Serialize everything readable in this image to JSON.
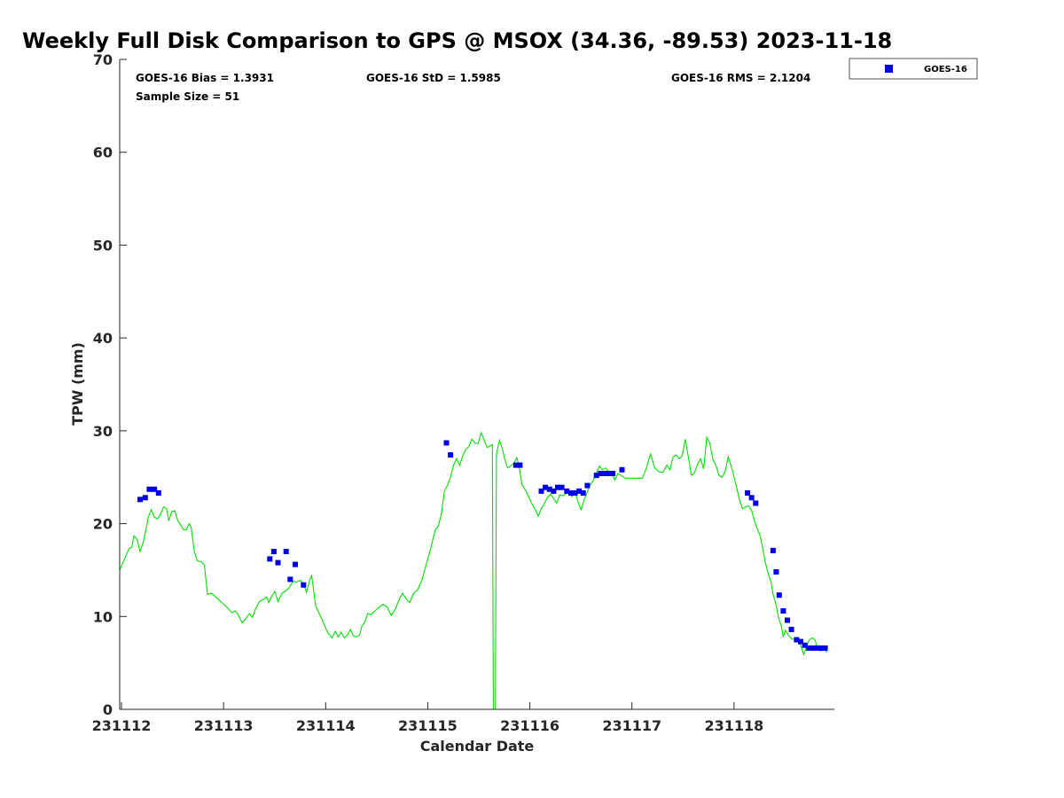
{
  "title": "Weekly Full Disk Comparison to GPS @ MSOX (34.36, -89.53) 2023-11-18",
  "stats": {
    "bias": "GOES-16 Bias = 1.3931",
    "std": "GOES-16 StD = 1.5985",
    "rms": "GOES-16 RMS = 2.1204",
    "sample": "Sample Size = 51"
  },
  "colors": {
    "gps_line": "#00e000",
    "goes_marker": "#0000e6",
    "axis": "#262626"
  },
  "chart_data": {
    "type": "scatter",
    "title": "Weekly Full Disk Comparison to GPS @ MSOX (34.36, -89.53) 2023-11-18",
    "xlabel": "Calendar Date",
    "ylabel": "TPW (mm)",
    "xlim": [
      "231112",
      "231119"
    ],
    "ylim": [
      0,
      70
    ],
    "x_ticks": [
      "231112",
      "231113",
      "231114",
      "231115",
      "231116",
      "231117",
      "231118"
    ],
    "y_ticks": [
      0,
      10,
      20,
      30,
      40,
      50,
      60,
      70
    ],
    "grid": false,
    "legend": {
      "placement": "top-right",
      "entries": [
        "GOES-16"
      ]
    },
    "series": [
      {
        "kind": "line",
        "color": "#00e000",
        "points": [
          [
            0.0,
            15.0
          ],
          [
            0.03,
            15.8
          ],
          [
            0.06,
            16.5
          ],
          [
            0.09,
            17.3
          ],
          [
            0.12,
            17.5
          ],
          [
            0.14,
            18.7
          ],
          [
            0.17,
            18.3
          ],
          [
            0.2,
            17.0
          ],
          [
            0.23,
            18.0
          ],
          [
            0.26,
            19.5
          ],
          [
            0.28,
            20.7
          ],
          [
            0.31,
            21.5
          ],
          [
            0.34,
            20.7
          ],
          [
            0.37,
            20.5
          ],
          [
            0.4,
            21.0
          ],
          [
            0.43,
            21.8
          ],
          [
            0.46,
            21.6
          ],
          [
            0.48,
            20.3
          ],
          [
            0.51,
            21.3
          ],
          [
            0.54,
            21.4
          ],
          [
            0.57,
            20.3
          ],
          [
            0.6,
            19.8
          ],
          [
            0.62,
            19.4
          ],
          [
            0.65,
            19.3
          ],
          [
            0.68,
            20.0
          ],
          [
            0.7,
            19.6
          ],
          [
            0.73,
            17.0
          ],
          [
            0.76,
            16.0
          ],
          [
            0.8,
            15.9
          ],
          [
            0.83,
            15.5
          ],
          [
            0.86,
            12.4
          ],
          [
            0.9,
            12.5
          ],
          [
            0.95,
            12.0
          ],
          [
            1.0,
            11.5
          ],
          [
            1.05,
            11.0
          ],
          [
            1.1,
            10.4
          ],
          [
            1.13,
            10.6
          ],
          [
            1.16,
            10.2
          ],
          [
            1.2,
            9.3
          ],
          [
            1.23,
            9.7
          ],
          [
            1.27,
            10.3
          ],
          [
            1.3,
            9.9
          ],
          [
            1.33,
            10.8
          ],
          [
            1.37,
            11.6
          ],
          [
            1.4,
            11.8
          ],
          [
            1.44,
            12.1
          ],
          [
            1.46,
            11.5
          ],
          [
            1.49,
            12.2
          ],
          [
            1.52,
            12.7
          ],
          [
            1.55,
            11.6
          ],
          [
            1.59,
            12.5
          ],
          [
            1.62,
            12.7
          ],
          [
            1.66,
            13.1
          ],
          [
            1.7,
            13.8
          ],
          [
            1.73,
            13.7
          ],
          [
            1.77,
            13.9
          ],
          [
            1.8,
            13.5
          ],
          [
            1.83,
            12.6
          ],
          [
            1.86,
            13.9
          ],
          [
            1.88,
            14.4
          ],
          [
            1.92,
            11.1
          ],
          [
            1.96,
            10.2
          ],
          [
            2.0,
            9.2
          ],
          [
            2.04,
            8.2
          ],
          [
            2.08,
            7.7
          ],
          [
            2.11,
            8.4
          ],
          [
            2.14,
            7.8
          ],
          [
            2.17,
            8.3
          ],
          [
            2.2,
            7.7
          ],
          [
            2.23,
            8.0
          ],
          [
            2.26,
            8.6
          ],
          [
            2.29,
            7.9
          ],
          [
            2.32,
            7.8
          ],
          [
            2.35,
            8.0
          ],
          [
            2.37,
            8.9
          ],
          [
            2.4,
            9.4
          ],
          [
            2.43,
            10.3
          ],
          [
            2.46,
            10.2
          ],
          [
            2.5,
            10.6
          ],
          [
            2.55,
            11.1
          ],
          [
            2.58,
            11.3
          ],
          [
            2.62,
            11.0
          ],
          [
            2.66,
            10.1
          ],
          [
            2.7,
            10.8
          ],
          [
            2.74,
            11.9
          ],
          [
            2.77,
            12.5
          ],
          [
            2.8,
            12.0
          ],
          [
            2.84,
            11.5
          ],
          [
            2.88,
            12.5
          ],
          [
            2.92,
            12.9
          ],
          [
            2.96,
            13.9
          ],
          [
            3.0,
            15.5
          ],
          [
            3.05,
            17.5
          ],
          [
            3.09,
            19.3
          ],
          [
            3.12,
            19.7
          ],
          [
            3.15,
            21.0
          ],
          [
            3.18,
            23.5
          ],
          [
            3.21,
            24.1
          ],
          [
            3.24,
            25.0
          ],
          [
            3.27,
            26.3
          ],
          [
            3.3,
            27.0
          ],
          [
            3.33,
            26.3
          ],
          [
            3.36,
            27.3
          ],
          [
            3.39,
            28.0
          ],
          [
            3.42,
            28.3
          ],
          [
            3.45,
            29.1
          ],
          [
            3.48,
            28.7
          ],
          [
            3.51,
            28.6
          ],
          [
            3.54,
            29.8
          ],
          [
            3.57,
            29.0
          ],
          [
            3.6,
            28.2
          ],
          [
            3.63,
            28.4
          ],
          [
            3.65,
            28.5
          ],
          [
            3.66,
            0.0
          ],
          [
            3.68,
            0.0
          ],
          [
            3.69,
            27.5
          ],
          [
            3.72,
            29.0
          ],
          [
            3.75,
            28.0
          ],
          [
            3.77,
            27.0
          ],
          [
            3.8,
            26.0
          ],
          [
            3.83,
            26.2
          ],
          [
            3.86,
            26.5
          ],
          [
            3.89,
            27.1
          ],
          [
            3.91,
            26.3
          ],
          [
            3.94,
            24.2
          ],
          [
            3.98,
            23.5
          ],
          [
            4.03,
            22.3
          ],
          [
            4.08,
            21.3
          ],
          [
            4.1,
            20.8
          ],
          [
            4.13,
            21.6
          ],
          [
            4.16,
            22.2
          ],
          [
            4.19,
            22.8
          ],
          [
            4.22,
            23.2
          ],
          [
            4.25,
            22.7
          ],
          [
            4.28,
            22.2
          ],
          [
            4.31,
            23.1
          ],
          [
            4.34,
            23.0
          ],
          [
            4.37,
            23.2
          ],
          [
            4.4,
            23.5
          ],
          [
            4.43,
            22.9
          ],
          [
            4.46,
            23.5
          ],
          [
            4.49,
            22.3
          ],
          [
            4.52,
            21.5
          ],
          [
            4.55,
            22.6
          ],
          [
            4.58,
            23.4
          ],
          [
            4.61,
            24.2
          ],
          [
            4.64,
            24.7
          ],
          [
            4.67,
            25.5
          ],
          [
            4.7,
            26.2
          ],
          [
            4.73,
            25.8
          ],
          [
            4.76,
            26.0
          ],
          [
            4.79,
            25.6
          ],
          [
            4.82,
            25.4
          ],
          [
            4.85,
            24.7
          ],
          [
            4.88,
            25.4
          ],
          [
            4.91,
            25.2
          ],
          [
            4.95,
            24.9
          ],
          [
            5.0,
            24.9
          ],
          [
            5.05,
            24.9
          ],
          [
            5.09,
            24.9
          ],
          [
            5.12,
            24.9
          ],
          [
            5.16,
            26.0
          ],
          [
            5.2,
            27.5
          ],
          [
            5.24,
            26.0
          ],
          [
            5.28,
            25.6
          ],
          [
            5.32,
            25.5
          ],
          [
            5.36,
            26.3
          ],
          [
            5.39,
            25.8
          ],
          [
            5.42,
            27.2
          ],
          [
            5.45,
            27.4
          ],
          [
            5.48,
            27.0
          ],
          [
            5.51,
            27.3
          ],
          [
            5.54,
            29.1
          ],
          [
            5.57,
            27.2
          ],
          [
            5.6,
            25.2
          ],
          [
            5.63,
            25.5
          ],
          [
            5.66,
            26.4
          ],
          [
            5.69,
            27.0
          ],
          [
            5.72,
            25.9
          ],
          [
            5.75,
            29.3
          ],
          [
            5.78,
            28.7
          ],
          [
            5.81,
            26.9
          ],
          [
            5.84,
            26.3
          ],
          [
            5.87,
            25.2
          ],
          [
            5.9,
            25.0
          ],
          [
            5.93,
            25.6
          ],
          [
            5.96,
            27.2
          ],
          [
            6.0,
            25.8
          ],
          [
            6.04,
            24.0
          ],
          [
            6.07,
            22.6
          ],
          [
            6.1,
            21.6
          ],
          [
            6.13,
            21.8
          ],
          [
            6.16,
            21.9
          ],
          [
            6.19,
            21.4
          ],
          [
            6.22,
            20.2
          ],
          [
            6.25,
            19.3
          ],
          [
            6.27,
            18.8
          ],
          [
            6.3,
            17.3
          ],
          [
            6.32,
            16.0
          ],
          [
            6.35,
            14.7
          ],
          [
            6.38,
            13.7
          ],
          [
            6.4,
            12.4
          ],
          [
            6.43,
            11.2
          ],
          [
            6.45,
            10.0
          ],
          [
            6.48,
            9.0
          ],
          [
            6.5,
            7.8
          ],
          [
            6.52,
            8.5
          ],
          [
            6.55,
            8.0
          ],
          [
            6.58,
            7.6
          ],
          [
            6.61,
            7.5
          ],
          [
            6.64,
            7.4
          ],
          [
            6.67,
            6.9
          ],
          [
            6.7,
            5.9
          ],
          [
            6.72,
            6.5
          ],
          [
            6.75,
            7.4
          ],
          [
            6.78,
            7.7
          ],
          [
            6.81,
            7.5
          ],
          [
            6.84,
            6.4
          ],
          [
            6.87,
            6.3
          ],
          [
            6.9,
            6.5
          ],
          [
            6.93,
            6.1
          ]
        ]
      },
      {
        "name": "GOES-16",
        "kind": "scatter",
        "marker": "square",
        "color": "#0000e6",
        "points": [
          [
            0.2,
            22.6
          ],
          [
            0.25,
            22.8
          ],
          [
            0.29,
            23.7
          ],
          [
            0.34,
            23.7
          ],
          [
            0.38,
            23.3
          ],
          [
            1.47,
            16.2
          ],
          [
            1.51,
            17.0
          ],
          [
            1.55,
            15.8
          ],
          [
            1.63,
            17.0
          ],
          [
            1.67,
            14.0
          ],
          [
            1.72,
            15.6
          ],
          [
            1.8,
            13.4
          ],
          [
            3.2,
            28.7
          ],
          [
            3.24,
            27.4
          ],
          [
            3.88,
            26.3
          ],
          [
            3.92,
            26.3
          ],
          [
            4.13,
            23.5
          ],
          [
            4.17,
            23.9
          ],
          [
            4.21,
            23.7
          ],
          [
            4.25,
            23.5
          ],
          [
            4.29,
            23.9
          ],
          [
            4.33,
            23.9
          ],
          [
            4.38,
            23.5
          ],
          [
            4.42,
            23.3
          ],
          [
            4.46,
            23.3
          ],
          [
            4.5,
            23.5
          ],
          [
            4.54,
            23.3
          ],
          [
            4.58,
            24.1
          ],
          [
            4.67,
            25.2
          ],
          [
            4.71,
            25.4
          ],
          [
            4.75,
            25.4
          ],
          [
            4.79,
            25.4
          ],
          [
            4.83,
            25.4
          ],
          [
            4.92,
            25.8
          ],
          [
            6.15,
            23.3
          ],
          [
            6.19,
            22.8
          ],
          [
            6.23,
            22.2
          ],
          [
            6.4,
            17.1
          ],
          [
            6.43,
            14.8
          ],
          [
            6.46,
            12.3
          ],
          [
            6.5,
            10.6
          ],
          [
            6.54,
            9.6
          ],
          [
            6.58,
            8.6
          ],
          [
            6.63,
            7.5
          ],
          [
            6.67,
            7.3
          ],
          [
            6.71,
            6.9
          ],
          [
            6.75,
            6.6
          ],
          [
            6.79,
            6.6
          ],
          [
            6.83,
            6.6
          ],
          [
            6.87,
            6.6
          ],
          [
            6.91,
            6.6
          ]
        ]
      }
    ]
  }
}
